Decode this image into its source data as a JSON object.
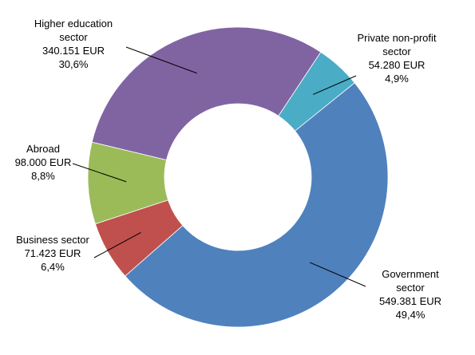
{
  "chart_data": {
    "type": "pie",
    "style": "donut",
    "unit": "EUR",
    "slices": [
      {
        "name": "Private non-profit sector",
        "label_lines": [
          "Private non-profit",
          "sector"
        ],
        "value": 54280,
        "value_text": "54.280 EUR",
        "percent": 4.9,
        "percent_text": "4,9%",
        "color": "#4BACC6"
      },
      {
        "name": "Government sector",
        "label_lines": [
          "Government",
          "sector"
        ],
        "value": 549381,
        "value_text": "549.381 EUR",
        "percent": 49.4,
        "percent_text": "49,4%",
        "color": "#4F81BD"
      },
      {
        "name": "Business sector",
        "label_lines": [
          "Business sector"
        ],
        "value": 71423,
        "value_text": "71.423 EUR",
        "percent": 6.4,
        "percent_text": "6,4%",
        "color": "#C0504D"
      },
      {
        "name": "Abroad",
        "label_lines": [
          "Abroad"
        ],
        "value": 98000,
        "value_text": "98.000 EUR",
        "percent": 8.8,
        "percent_text": "8,8%",
        "color": "#9BBB59"
      },
      {
        "name": "Higher education sector",
        "label_lines": [
          "Higher education",
          "sector"
        ],
        "value": 340151,
        "value_text": "340.151 EUR",
        "percent": 30.6,
        "percent_text": "30,6%",
        "color": "#8064A2"
      }
    ]
  }
}
